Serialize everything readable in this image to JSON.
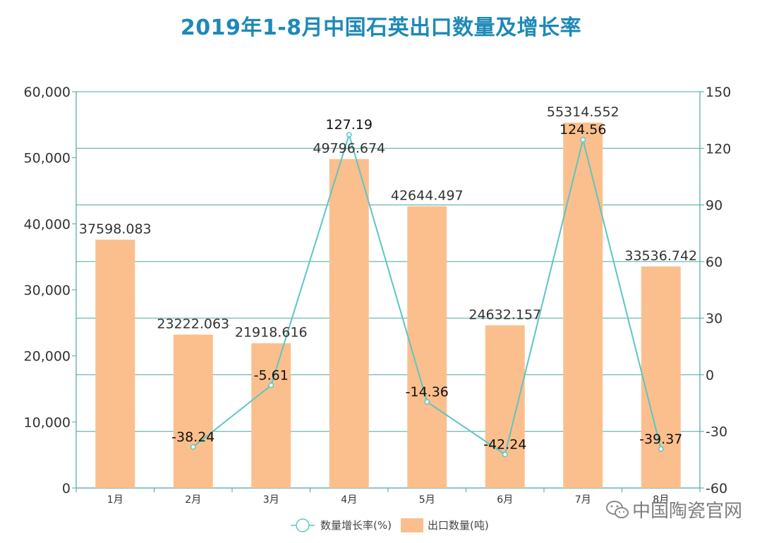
{
  "chart_data": {
    "type": "bar",
    "title": "2019年1-8月中国石英出口数量及增长率",
    "categories": [
      "1月",
      "2月",
      "3月",
      "4月",
      "5月",
      "6月",
      "7月",
      "8月"
    ],
    "series": [
      {
        "name": "出口数量(吨)",
        "type": "bar",
        "axis": "left",
        "values": [
          37598.083,
          23222.063,
          21918.616,
          49796.674,
          42644.497,
          24632.157,
          55314.552,
          33536.742
        ],
        "labels": [
          "37598.083",
          "23222.063",
          "21918.616",
          "49796.674",
          "42644.497",
          "24632.157",
          "55314.552",
          "33536.742"
        ]
      },
      {
        "name": "数量增长率(%)",
        "type": "line",
        "axis": "right",
        "values": [
          null,
          -38.24,
          -5.61,
          127.19,
          -14.36,
          -42.24,
          124.56,
          -39.37
        ],
        "labels": [
          "",
          "-38.24",
          "-5.61",
          "127.19",
          "-14.36",
          "-42.24",
          "124.56",
          "-39.37"
        ]
      }
    ],
    "left_axis": {
      "range": [
        0,
        60000
      ],
      "ticks": [
        0,
        10000,
        20000,
        30000,
        40000,
        50000,
        60000
      ],
      "tick_labels": [
        "0",
        "10,000",
        "20,000",
        "30,000",
        "40,000",
        "50,000",
        "60,000"
      ]
    },
    "right_axis": {
      "range": [
        -60,
        150
      ],
      "ticks": [
        -60,
        -30,
        0,
        30,
        60,
        90,
        120,
        150
      ],
      "tick_labels": [
        "-60",
        "-30",
        "0",
        "30",
        "60",
        "90",
        "120",
        "150"
      ]
    },
    "grid": true,
    "legend": {
      "position": "bottom",
      "entries": [
        "数量增长率(%)",
        "出口数量(吨)"
      ]
    },
    "colors": {
      "bar": "#fbbf8e",
      "line": "#5cc6c0",
      "axis": "#4aa7a1",
      "title": "#1d89b8",
      "text": "#333333"
    }
  },
  "watermark": {
    "text": "中国陶瓷官网",
    "icon": "wechat-icon"
  }
}
